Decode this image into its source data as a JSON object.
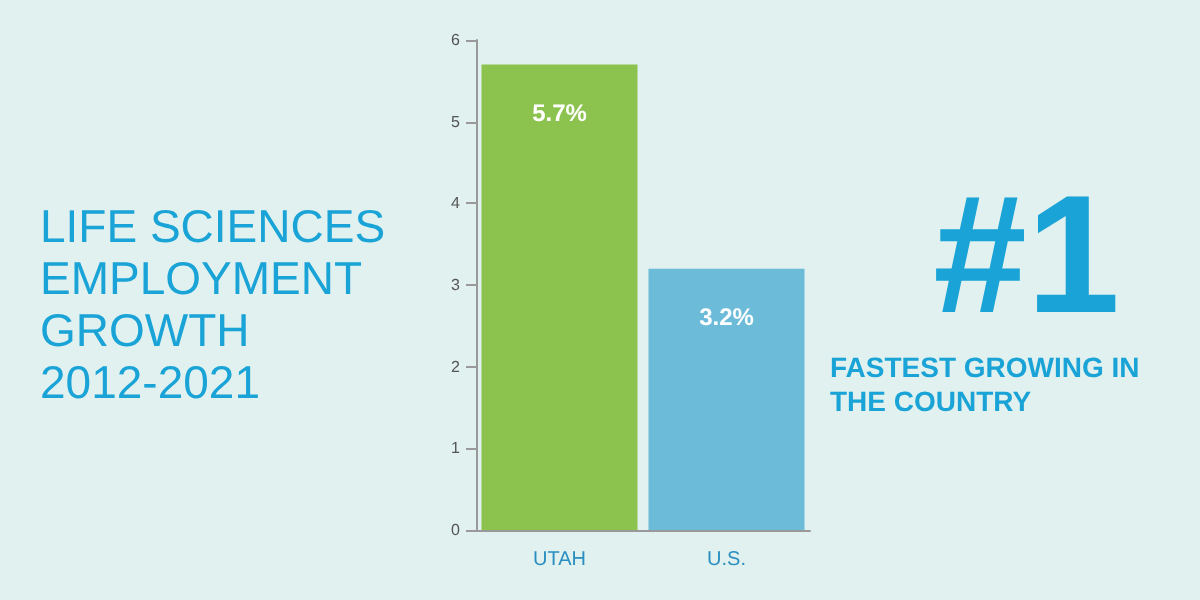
{
  "chart_data": {
    "type": "bar",
    "title": "LIFE SCIENCES EMPLOYMENT GROWTH 2012-2021",
    "categories": [
      "UTAH",
      "U.S."
    ],
    "values": [
      5.7,
      3.2
    ],
    "colors": [
      "#8cc34f",
      "#6cbbd8"
    ],
    "value_labels": [
      "5.7%",
      "3.2%"
    ],
    "ylim": [
      0,
      6
    ],
    "yticks": [
      0,
      1,
      2,
      3,
      4,
      5,
      6
    ],
    "grid": false,
    "annotations": [
      "#1",
      "FASTEST GROWING IN THE COUNTRY"
    ]
  }
}
